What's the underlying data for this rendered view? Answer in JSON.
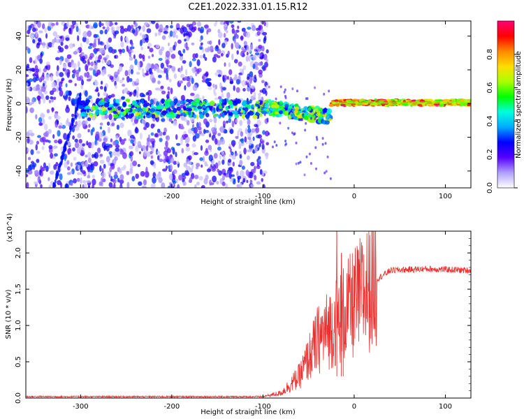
{
  "title": "C2E1.2022.331.01.15.R12",
  "chart_data": [
    {
      "type": "heatmap",
      "name": "spectrogram",
      "xlabel": "Height of straight line (km)",
      "ylabel": "Frequency (Hz)",
      "xlim": [
        -360,
        128
      ],
      "ylim": [
        -50,
        49
      ],
      "xticks": [
        -300,
        -200,
        -100,
        0,
        100
      ],
      "yticks": [
        -40,
        -20,
        0,
        20,
        40
      ],
      "colorbar": {
        "label": "Normalized spectral amplitude",
        "range": [
          0,
          1
        ],
        "ticks": [
          "0.0",
          "0.2",
          "0.4",
          "0.6",
          "0.8"
        ],
        "colors": [
          "#ffffff",
          "#b0a0ff",
          "#5500ff",
          "#0000ff",
          "#00aaff",
          "#00ffdd",
          "#00ff00",
          "#aaff00",
          "#ffdd00",
          "#ff8800",
          "#ff0000",
          "#ff0077"
        ]
      },
      "description_regions": [
        {
          "x": [
            -360,
            -95
          ],
          "freq": [
            -50,
            49
          ],
          "level": 0.2,
          "note": "broadband noise"
        },
        {
          "x": [
            -300,
            -100
          ],
          "freq": [
            -8,
            5
          ],
          "level": 0.45,
          "note": "weak band near 0 Hz"
        },
        {
          "x": [
            -100,
            -25
          ],
          "freq": [
            -15,
            0
          ],
          "level": 0.55,
          "note": "descending signal"
        },
        {
          "x": [
            -25,
            128
          ],
          "freq": [
            -1,
            2
          ],
          "level": 0.95,
          "note": "strong narrow carrier"
        }
      ]
    },
    {
      "type": "line",
      "name": "snr",
      "xlabel": "Height of straight line (km)",
      "ylabel": "SNR (10 * v/v)",
      "y_multiplier": "(x10^4)",
      "xlim": [
        -360,
        128
      ],
      "ylim": [
        0,
        2.3
      ],
      "xticks": [
        -300,
        -200,
        -100,
        0,
        100
      ],
      "yticks": [
        "0.0",
        "0.5",
        "1.0",
        "1.5",
        "2.0"
      ],
      "color": "#e8302e",
      "series_profile": [
        {
          "x": -360,
          "y": 0.02
        },
        {
          "x": -100,
          "y": 0.02
        },
        {
          "x": -80,
          "y": 0.07
        },
        {
          "x": -60,
          "y": 0.3
        },
        {
          "x": -40,
          "y": 0.8
        },
        {
          "x": -20,
          "y": 1.05
        },
        {
          "x": 0,
          "y": 1.3
        },
        {
          "x": 20,
          "y": 1.6
        },
        {
          "x": 40,
          "y": 1.76
        },
        {
          "x": 80,
          "y": 1.78
        },
        {
          "x": 125,
          "y": 1.76
        }
      ],
      "peaks": [
        {
          "x": -19,
          "y": 2.3
        },
        {
          "x": -14,
          "y": 2.0
        },
        {
          "x": -12,
          "y": 1.6
        }
      ]
    }
  ]
}
